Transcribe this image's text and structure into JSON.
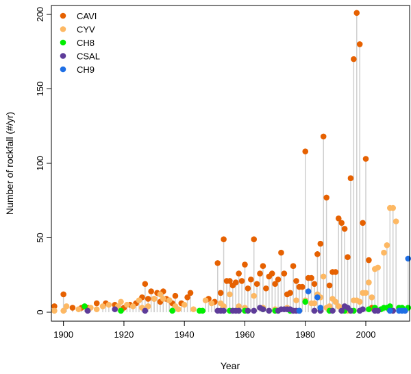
{
  "chart_data": {
    "type": "scatter",
    "title": "",
    "xlabel": "Year",
    "ylabel": "Number of rockfall (#/yr)",
    "xlim": [
      1896,
      2014.5
    ],
    "ylim": [
      -6,
      206
    ],
    "xticks": [
      1900,
      1920,
      1940,
      1960,
      1980,
      2000
    ],
    "yticks": [
      0,
      50,
      100,
      150,
      200
    ],
    "legend_position": "top-left",
    "stems": true,
    "series": [
      {
        "name": "CAVI",
        "color": "#E66101",
        "points": [
          [
            1897,
            4
          ],
          [
            1900,
            12
          ],
          [
            1903,
            3
          ],
          [
            1906,
            3
          ],
          [
            1908,
            3
          ],
          [
            1911,
            6
          ],
          [
            1914,
            6
          ],
          [
            1917,
            5
          ],
          [
            1920,
            3
          ],
          [
            1922,
            5
          ],
          [
            1924,
            6
          ],
          [
            1926,
            10
          ],
          [
            1927,
            19
          ],
          [
            1928,
            9
          ],
          [
            1929,
            14
          ],
          [
            1930,
            9
          ],
          [
            1931,
            13
          ],
          [
            1932,
            7
          ],
          [
            1933,
            14
          ],
          [
            1934,
            9
          ],
          [
            1935,
            8
          ],
          [
            1936,
            6
          ],
          [
            1937,
            11
          ],
          [
            1939,
            6
          ],
          [
            1941,
            10
          ],
          [
            1942,
            13
          ],
          [
            1948,
            9
          ],
          [
            1950,
            7
          ],
          [
            1951,
            33
          ],
          [
            1952,
            13
          ],
          [
            1953,
            49
          ],
          [
            1954,
            21
          ],
          [
            1955,
            21
          ],
          [
            1956,
            18
          ],
          [
            1957,
            20
          ],
          [
            1958,
            26
          ],
          [
            1959,
            21
          ],
          [
            1960,
            32
          ],
          [
            1961,
            16
          ],
          [
            1962,
            22
          ],
          [
            1963,
            49
          ],
          [
            1964,
            19
          ],
          [
            1965,
            26
          ],
          [
            1966,
            31
          ],
          [
            1967,
            16
          ],
          [
            1968,
            24
          ],
          [
            1969,
            26
          ],
          [
            1970,
            19
          ],
          [
            1971,
            22
          ],
          [
            1972,
            40
          ],
          [
            1973,
            26
          ],
          [
            1974,
            12
          ],
          [
            1975,
            13
          ],
          [
            1976,
            31
          ],
          [
            1977,
            21
          ],
          [
            1978,
            17
          ],
          [
            1979,
            17
          ],
          [
            1980,
            108
          ],
          [
            1981,
            23
          ],
          [
            1982,
            23
          ],
          [
            1983,
            19
          ],
          [
            1984,
            39
          ],
          [
            1985,
            46
          ],
          [
            1986,
            118
          ],
          [
            1987,
            77
          ],
          [
            1988,
            18
          ],
          [
            1989,
            27
          ],
          [
            1990,
            27
          ],
          [
            1991,
            63
          ],
          [
            1992,
            60
          ],
          [
            1993,
            56
          ],
          [
            1994,
            37
          ],
          [
            1995,
            90
          ],
          [
            1996,
            170
          ],
          [
            1997,
            201
          ],
          [
            1998,
            180
          ],
          [
            1999,
            60
          ],
          [
            2000,
            103
          ],
          [
            2001,
            35
          ],
          [
            2002,
            3
          ]
        ]
      },
      {
        "name": "CYV",
        "color": "#FDB863",
        "points": [
          [
            1897,
            1
          ],
          [
            1900,
            1
          ],
          [
            1901,
            4
          ],
          [
            1905,
            2
          ],
          [
            1909,
            3
          ],
          [
            1911,
            2
          ],
          [
            1913,
            4
          ],
          [
            1915,
            5
          ],
          [
            1918,
            4
          ],
          [
            1919,
            7
          ],
          [
            1921,
            5
          ],
          [
            1923,
            4
          ],
          [
            1925,
            8
          ],
          [
            1926,
            3
          ],
          [
            1928,
            4
          ],
          [
            1930,
            9
          ],
          [
            1932,
            12
          ],
          [
            1933,
            9
          ],
          [
            1935,
            8
          ],
          [
            1937,
            4
          ],
          [
            1938,
            2
          ],
          [
            1940,
            5
          ],
          [
            1943,
            2
          ],
          [
            1947,
            8
          ],
          [
            1949,
            6
          ],
          [
            1952,
            6
          ],
          [
            1953,
            4
          ],
          [
            1955,
            12
          ],
          [
            1958,
            4
          ],
          [
            1960,
            3
          ],
          [
            1963,
            11
          ],
          [
            1966,
            3
          ],
          [
            1970,
            2
          ],
          [
            1974,
            3
          ],
          [
            1977,
            8
          ],
          [
            1980,
            8
          ],
          [
            1982,
            6
          ],
          [
            1983,
            6
          ],
          [
            1984,
            12
          ],
          [
            1985,
            10
          ],
          [
            1986,
            24
          ],
          [
            1987,
            3
          ],
          [
            1988,
            4
          ],
          [
            1989,
            9
          ],
          [
            1990,
            7
          ],
          [
            1991,
            4
          ],
          [
            1992,
            3
          ],
          [
            1994,
            1
          ],
          [
            1996,
            8
          ],
          [
            1997,
            8
          ],
          [
            1998,
            7
          ],
          [
            1999,
            13
          ],
          [
            2000,
            13
          ],
          [
            2001,
            20
          ],
          [
            2002,
            10
          ],
          [
            2003,
            29
          ],
          [
            2004,
            30
          ],
          [
            2006,
            40
          ],
          [
            2007,
            45
          ],
          [
            2008,
            70
          ],
          [
            2009,
            70
          ],
          [
            2010,
            61
          ]
        ]
      },
      {
        "name": "CH8",
        "color": "#00EE00",
        "points": [
          [
            1907,
            4
          ],
          [
            1919,
            1
          ],
          [
            1936,
            1
          ],
          [
            1945,
            1
          ],
          [
            1946,
            1
          ],
          [
            1955,
            1
          ],
          [
            1958,
            1
          ],
          [
            1960,
            1
          ],
          [
            1966,
            2
          ],
          [
            1970,
            1
          ],
          [
            1975,
            1
          ],
          [
            1980,
            7
          ],
          [
            1988,
            1
          ],
          [
            1993,
            1
          ],
          [
            1996,
            1
          ],
          [
            2001,
            2
          ],
          [
            2003,
            3
          ],
          [
            2005,
            2
          ],
          [
            2006,
            3
          ],
          [
            2007,
            3
          ],
          [
            2008,
            4
          ],
          [
            2011,
            3
          ],
          [
            2012,
            3
          ],
          [
            2014,
            3
          ]
        ]
      },
      {
        "name": "CSAL",
        "color": "#5E3C99",
        "points": [
          [
            1908,
            1
          ],
          [
            1917,
            2
          ],
          [
            1927,
            1
          ],
          [
            1951,
            1
          ],
          [
            1952,
            1
          ],
          [
            1953,
            1
          ],
          [
            1956,
            1
          ],
          [
            1957,
            1
          ],
          [
            1958,
            1
          ],
          [
            1961,
            1
          ],
          [
            1963,
            1
          ],
          [
            1965,
            3
          ],
          [
            1966,
            2
          ],
          [
            1968,
            1
          ],
          [
            1971,
            1
          ],
          [
            1972,
            2
          ],
          [
            1973,
            2
          ],
          [
            1974,
            2
          ],
          [
            1975,
            2
          ],
          [
            1976,
            1
          ],
          [
            1977,
            1
          ],
          [
            1978,
            1
          ],
          [
            1983,
            1
          ],
          [
            1985,
            1
          ],
          [
            1989,
            1
          ],
          [
            1992,
            1
          ],
          [
            1993,
            4
          ],
          [
            1994,
            3
          ],
          [
            1995,
            1
          ],
          [
            1998,
            1
          ],
          [
            1999,
            2
          ],
          [
            2003,
            1
          ],
          [
            2004,
            1
          ],
          [
            2008,
            1
          ],
          [
            2009,
            1
          ]
        ]
      },
      {
        "name": "CH9",
        "color": "#1F6FE5",
        "points": [
          [
            1978,
            1
          ],
          [
            1981,
            14
          ],
          [
            1984,
            10
          ],
          [
            1985,
            3
          ],
          [
            2008,
            1
          ],
          [
            2011,
            1
          ],
          [
            2012,
            1
          ],
          [
            2013,
            1
          ],
          [
            2014,
            36
          ]
        ]
      }
    ]
  }
}
